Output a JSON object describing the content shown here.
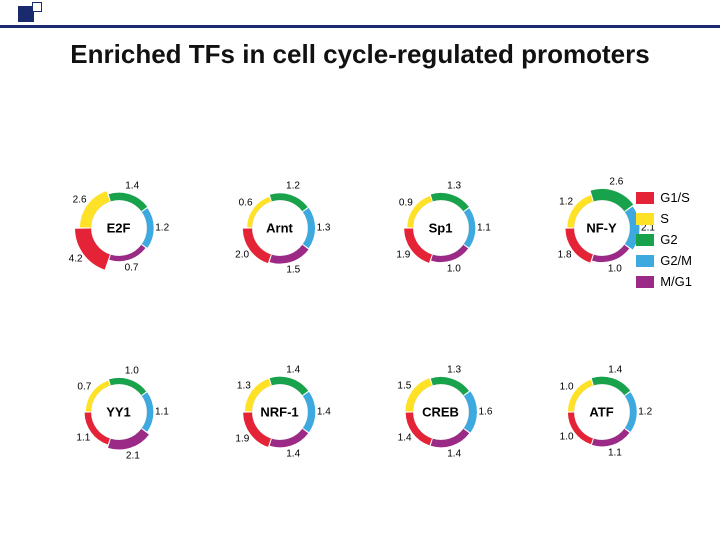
{
  "title": "Enriched TFs in cell cycle-regulated promoters",
  "phases": [
    "G1/S",
    "S",
    "G2",
    "G2/M",
    "M/G1"
  ],
  "phase_colors": {
    "G1/S": "#e52337",
    "S": "#ffe125",
    "G2": "#18a24b",
    "G2/M": "#3da9de",
    "M/G1": "#9b2a86"
  },
  "base_arc_deg": 72,
  "min_thickness": 3,
  "max_thickness": 16,
  "inner_radius": 28,
  "bg": "#ffffff",
  "label_fontsize": 10,
  "center_fontsize": 13,
  "panels": [
    {
      "name": "E2F",
      "values": {
        "G1/S": 4.2,
        "S": 2.6,
        "G2": 1.4,
        "G2/M": 1.2,
        "M/G1": 0.7
      }
    },
    {
      "name": "Arnt",
      "values": {
        "G1/S": 2.0,
        "S": 0.6,
        "G2": 1.2,
        "G2/M": 1.3,
        "M/G1": 1.5
      }
    },
    {
      "name": "Sp1",
      "values": {
        "G1/S": 1.9,
        "S": 0.9,
        "G2": 1.3,
        "G2/M": 1.1,
        "M/G1": 1.0
      }
    },
    {
      "name": "NF-Y",
      "values": {
        "G1/S": 1.8,
        "S": 1.2,
        "G2": 2.6,
        "G2/M": 2.1,
        "M/G1": 1.0
      }
    },
    {
      "name": "YY1",
      "values": {
        "G1/S": 1.1,
        "S": 0.7,
        "G2": 1.0,
        "G2/M": 1.1,
        "M/G1": 2.1
      }
    },
    {
      "name": "NRF-1",
      "values": {
        "G1/S": 1.9,
        "S": 1.3,
        "G2": 1.4,
        "G2/M": 1.4,
        "M/G1": 1.4
      }
    },
    {
      "name": "CREB",
      "values": {
        "G1/S": 1.4,
        "S": 1.5,
        "G2": 1.3,
        "G2/M": 1.6,
        "M/G1": 1.4
      }
    },
    {
      "name": "ATF",
      "values": {
        "G1/S": 1.0,
        "S": 1.0,
        "G2": 1.4,
        "G2/M": 1.2,
        "M/G1": 1.1
      }
    }
  ]
}
